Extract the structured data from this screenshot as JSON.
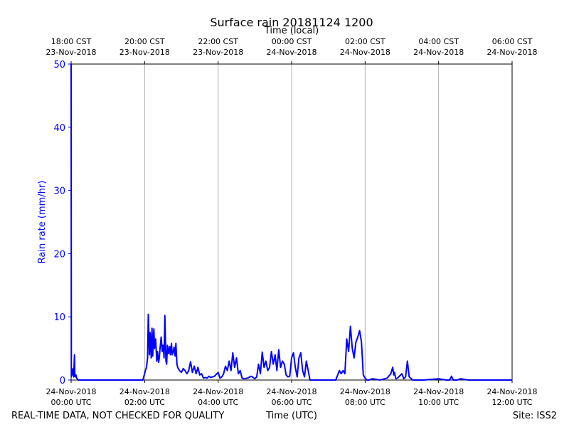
{
  "chart_data": {
    "type": "line",
    "title": "Surface rain 20181124 1200",
    "top_axis_label": "Time (local)",
    "xlabel": "Time (UTC)",
    "ylabel": "Rain rate (mm/hr)",
    "ylim": [
      0,
      50
    ],
    "xlim_hours_utc": [
      0,
      12
    ],
    "grid": "vertical",
    "series_color": "#0000ff",
    "x_ticks_utc": [
      {
        "h": 0,
        "date": "24-Nov-2018",
        "time": "00:00 UTC"
      },
      {
        "h": 2,
        "date": "24-Nov-2018",
        "time": "02:00 UTC"
      },
      {
        "h": 4,
        "date": "24-Nov-2018",
        "time": "04:00 UTC"
      },
      {
        "h": 6,
        "date": "24-Nov-2018",
        "time": "06:00 UTC"
      },
      {
        "h": 8,
        "date": "24-Nov-2018",
        "time": "08:00 UTC"
      },
      {
        "h": 10,
        "date": "24-Nov-2018",
        "time": "10:00 UTC"
      },
      {
        "h": 12,
        "date": "24-Nov-2018",
        "time": "12:00 UTC"
      }
    ],
    "x_ticks_local": [
      {
        "h": 0,
        "time": "18:00 CST",
        "date": "23-Nov-2018"
      },
      {
        "h": 2,
        "time": "20:00 CST",
        "date": "23-Nov-2018"
      },
      {
        "h": 4,
        "time": "22:00 CST",
        "date": "23-Nov-2018"
      },
      {
        "h": 6,
        "time": "00:00 CST",
        "date": "24-Nov-2018"
      },
      {
        "h": 8,
        "time": "02:00 CST",
        "date": "24-Nov-2018"
      },
      {
        "h": 10,
        "time": "04:00 CST",
        "date": "24-Nov-2018"
      },
      {
        "h": 12,
        "time": "06:00 CST",
        "date": "24-Nov-2018"
      }
    ],
    "y_ticks": [
      0,
      10,
      20,
      30,
      40,
      50
    ],
    "x_hours_utc": [
      0,
      0.005,
      0.01,
      0.03,
      0.05,
      0.07,
      0.09,
      0.1,
      0.11,
      0.13,
      0.15,
      0.2,
      0.25,
      0.3,
      1.0,
      1.5,
      1.95,
      2.0,
      2.02,
      2.05,
      2.08,
      2.1,
      2.13,
      2.15,
      2.18,
      2.2,
      2.22,
      2.25,
      2.27,
      2.3,
      2.33,
      2.35,
      2.38,
      2.4,
      2.42,
      2.45,
      2.48,
      2.5,
      2.53,
      2.55,
      2.58,
      2.6,
      2.62,
      2.65,
      2.68,
      2.7,
      2.73,
      2.75,
      2.78,
      2.8,
      2.83,
      2.85,
      2.88,
      2.9,
      2.95,
      3.0,
      3.05,
      3.1,
      3.15,
      3.2,
      3.25,
      3.3,
      3.35,
      3.4,
      3.45,
      3.5,
      3.55,
      3.6,
      3.65,
      3.7,
      3.75,
      3.8,
      3.9,
      4.0,
      4.05,
      4.1,
      4.15,
      4.2,
      4.25,
      4.3,
      4.35,
      4.4,
      4.45,
      4.5,
      4.55,
      4.6,
      4.65,
      4.7,
      4.8,
      4.9,
      5.0,
      5.05,
      5.1,
      5.15,
      5.2,
      5.25,
      5.3,
      5.35,
      5.4,
      5.45,
      5.5,
      5.55,
      5.6,
      5.65,
      5.7,
      5.75,
      5.8,
      5.85,
      5.9,
      5.95,
      6.0,
      6.05,
      6.1,
      6.15,
      6.2,
      6.25,
      6.3,
      6.35,
      6.4,
      6.45,
      6.5,
      6.6,
      6.8,
      7.0,
      7.2,
      7.3,
      7.35,
      7.4,
      7.45,
      7.5,
      7.55,
      7.6,
      7.65,
      7.7,
      7.75,
      7.8,
      7.85,
      7.9,
      7.95,
      8.0,
      8.05,
      8.1,
      8.2,
      8.4,
      8.6,
      8.7,
      8.75,
      8.78,
      8.8,
      8.83,
      8.85,
      8.9,
      9.0,
      9.05,
      9.1,
      9.15,
      9.2,
      9.3,
      9.4,
      9.6,
      9.8,
      10.0,
      10.2,
      10.3,
      10.35,
      10.4,
      10.5,
      10.6,
      10.7,
      10.8,
      11.0,
      11.5,
      12.0
    ],
    "values": [
      50,
      0.5,
      1.5,
      0.8,
      1.8,
      0.5,
      4.0,
      1.0,
      0.5,
      0.8,
      0.3,
      0,
      0,
      0,
      0,
      0,
      0,
      1.0,
      1.5,
      2.0,
      3.5,
      10.4,
      4.0,
      7.5,
      3.5,
      8.2,
      3.8,
      8.1,
      5.0,
      6.5,
      3.0,
      4.5,
      2.8,
      3.5,
      5.0,
      6.8,
      4.5,
      5.5,
      3.5,
      10.2,
      3.0,
      2.5,
      5.5,
      4.2,
      5.3,
      4.0,
      5.8,
      4.0,
      4.5,
      5.2,
      3.8,
      5.8,
      2.5,
      2.0,
      1.5,
      1.2,
      1.8,
      1.5,
      1.0,
      1.5,
      2.9,
      1.2,
      2.2,
      1.0,
      2.0,
      0.8,
      1.0,
      0.3,
      0.4,
      0.3,
      0.6,
      0.4,
      0.6,
      1.2,
      0.3,
      0.5,
      1.0,
      2.2,
      1.5,
      3.0,
      1.5,
      4.3,
      2.0,
      3.5,
      1.0,
      1.5,
      0.3,
      0.2,
      0.3,
      0.6,
      0.2,
      0.5,
      2.5,
      1.0,
      4.4,
      2.0,
      3.0,
      1.5,
      2.0,
      4.5,
      2.5,
      4.0,
      1.5,
      4.8,
      2.0,
      3.0,
      2.5,
      0.8,
      0.5,
      0.6,
      3.5,
      4.3,
      2.0,
      0.5,
      3.5,
      4.3,
      1.5,
      0.5,
      3.0,
      1.5,
      0,
      0,
      0,
      0,
      0,
      1.5,
      1.0,
      1.5,
      1.0,
      6.5,
      4.5,
      8.5,
      5.0,
      3.5,
      6.0,
      6.8,
      7.8,
      6.0,
      0.8,
      0.3,
      0,
      0,
      0.2,
      0,
      0.3,
      1.0,
      2.0,
      0.8,
      1.2,
      0.3,
      0.2,
      0.4,
      1.0,
      0.2,
      0.5,
      3.0,
      0.5,
      0,
      0,
      0,
      0.1,
      0.2,
      0,
      0,
      0.6,
      0,
      0,
      0.2,
      0.1,
      0,
      0,
      0,
      0
    ],
    "footer": {
      "left": "REAL-TIME DATA, NOT CHECKED FOR QUALITY",
      "right": "Site: ISS2"
    }
  }
}
